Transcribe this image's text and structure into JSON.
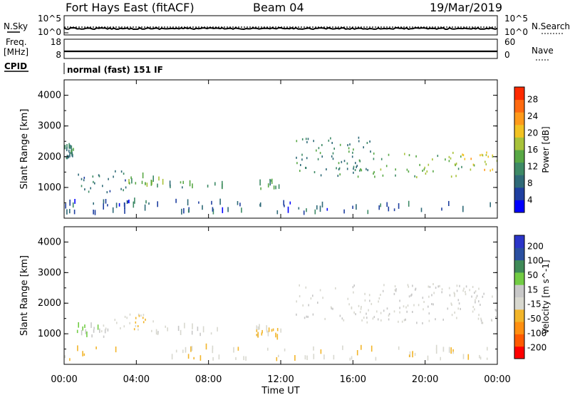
{
  "header": {
    "station": "Fort Hays East (fitACF)",
    "beam": "Beam 04",
    "date": "19/Mar/2019"
  },
  "top_panels": {
    "nsky_label": "N.Sky",
    "nsearch_label": "N.Search",
    "noise_ticks": [
      "10^5",
      "10^0"
    ],
    "freq_label_1": "Freq.",
    "freq_label_2": "[MHz]",
    "freq_ticks": [
      "18",
      "8"
    ],
    "nave_label": "Nave",
    "nave_ticks": [
      "60",
      "0"
    ],
    "cpid_label": "CPID",
    "cpid_text": "normal (fast) 151 IF"
  },
  "time_axis": {
    "label": "Time UT",
    "ticks": [
      "00:00",
      "04:00",
      "08:00",
      "12:00",
      "16:00",
      "20:00",
      "00:00"
    ]
  },
  "colors": {
    "power": [
      "#0000ff",
      "#1f3fa0",
      "#2f6a78",
      "#3e8a66",
      "#58a845",
      "#a8c23a",
      "#f2c222",
      "#ff9a1a",
      "#ff6a10",
      "#ff2a00"
    ],
    "velocity": [
      "#ff0000",
      "#ff5a00",
      "#ff8f10",
      "#f2b52a",
      "#d8d8cf",
      "#c8c8c8",
      "#72cc44",
      "#3f8a58",
      "#2a4fa0",
      "#2b35c8"
    ]
  },
  "chart_data": [
    {
      "type": "heatmap",
      "title": "",
      "ylabel": "Slant Range [km]",
      "xlabel": "",
      "ylim": [
        0,
        4500
      ],
      "yticks": [
        "1000",
        "2000",
        "3000",
        "4000"
      ],
      "colorbar": {
        "label": "Power [dB]",
        "ticks": [
          "28",
          "24",
          "20",
          "16",
          "12",
          "8",
          "4"
        ],
        "range": [
          0,
          30
        ]
      },
      "regions": [
        {
          "t0": 0.0,
          "t1": 0.5,
          "r0": 1900,
          "r1": 2300,
          "value": 10
        },
        {
          "t0": 0.6,
          "t1": 3.5,
          "r0": 800,
          "r1": 1500,
          "value": 8
        },
        {
          "t0": 3.5,
          "t1": 5.5,
          "r0": 1000,
          "r1": 1300,
          "value": 14
        },
        {
          "t0": 5.5,
          "t1": 9.0,
          "r0": 900,
          "r1": 1150,
          "value": 10
        },
        {
          "t0": 10.5,
          "t1": 12.0,
          "r0": 800,
          "r1": 1200,
          "value": 12
        },
        {
          "t0": 12.8,
          "t1": 17.0,
          "r0": 1300,
          "r1": 2600,
          "value": 10
        },
        {
          "t0": 17.0,
          "t1": 22.0,
          "r0": 1300,
          "r1": 2100,
          "value": 14
        },
        {
          "t0": 22.0,
          "t1": 24.0,
          "r0": 1500,
          "r1": 2100,
          "value": 18
        },
        {
          "t0": 0.0,
          "t1": 24.0,
          "r0": 100,
          "r1": 500,
          "value": 6
        }
      ]
    },
    {
      "type": "heatmap",
      "title": "",
      "ylabel": "Slant Range [km]",
      "xlabel": "Time UT",
      "ylim": [
        0,
        4500
      ],
      "yticks": [
        "1000",
        "2000",
        "3000",
        "4000"
      ],
      "colorbar": {
        "label": "Velocity [m s^-1]",
        "ticks": [
          "200",
          "100",
          "50",
          "15",
          "-15",
          "-50",
          "-100",
          "-200"
        ],
        "range": [
          -250,
          250
        ]
      },
      "regions": [
        {
          "t0": 0.6,
          "t1": 2.5,
          "r0": 800,
          "r1": 1200,
          "value": 40
        },
        {
          "t0": 2.0,
          "t1": 5.0,
          "r0": 1000,
          "r1": 1600,
          "value": -40
        },
        {
          "t0": 5.0,
          "t1": 9.0,
          "r0": 900,
          "r1": 1200,
          "value": 0
        },
        {
          "t0": 10.5,
          "t1": 12.0,
          "r0": 800,
          "r1": 1200,
          "value": -60
        },
        {
          "t0": 12.8,
          "t1": 24.0,
          "r0": 1300,
          "r1": 2600,
          "value": 0
        },
        {
          "t0": 0.0,
          "t1": 24.0,
          "r0": 100,
          "r1": 500,
          "value": -40
        }
      ]
    }
  ]
}
